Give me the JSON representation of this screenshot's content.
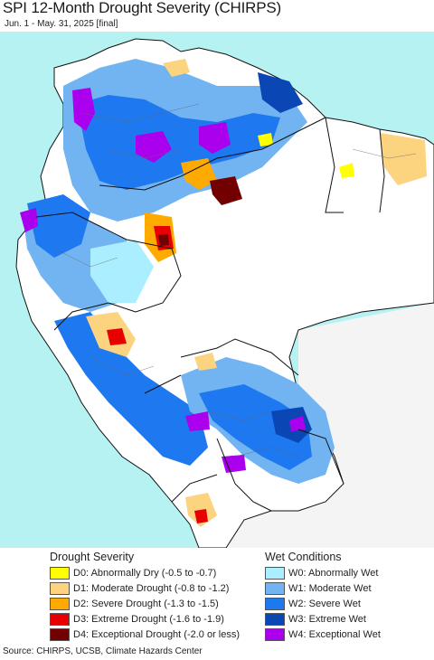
{
  "title": "SPI 12-Month Drought Severity (CHIRPS)",
  "subtitle": "Jun. 1 - May. 31, 2025 [final]",
  "map": {
    "ocean_color": "#b6f2f2",
    "land_other_color": "#f4f4f4",
    "border_color": "#111111",
    "admin_color": "#666666"
  },
  "legend": {
    "drought_heading": "Drought Severity",
    "wet_heading": "Wet Conditions",
    "drought_items": [
      {
        "label": "D0: Abnormally Dry (-0.5 to -0.7)",
        "color": "#ffff00"
      },
      {
        "label": "D1: Moderate Drought (-0.8 to -1.2)",
        "color": "#fcd37f"
      },
      {
        "label": "D2: Severe Drought (-1.3 to -1.5)",
        "color": "#ffaa00"
      },
      {
        "label": "D3: Extreme Drought (-1.6 to -1.9)",
        "color": "#e60000"
      },
      {
        "label": "D4: Exceptional Drought (-2.0 or less)",
        "color": "#730000"
      }
    ],
    "wet_items": [
      {
        "label": "W0: Abnormally Wet",
        "color": "#aaeeff"
      },
      {
        "label": "W1: Moderate Wet",
        "color": "#72b4f2"
      },
      {
        "label": "W2: Severe Wet",
        "color": "#1e78f0"
      },
      {
        "label": "W3: Extreme Wet",
        "color": "#0a46b4"
      },
      {
        "label": "W4: Exceptional Wet",
        "color": "#aa00ee"
      }
    ]
  },
  "source": "Source: CHIRPS, UCSB, Climate Hazards Center"
}
